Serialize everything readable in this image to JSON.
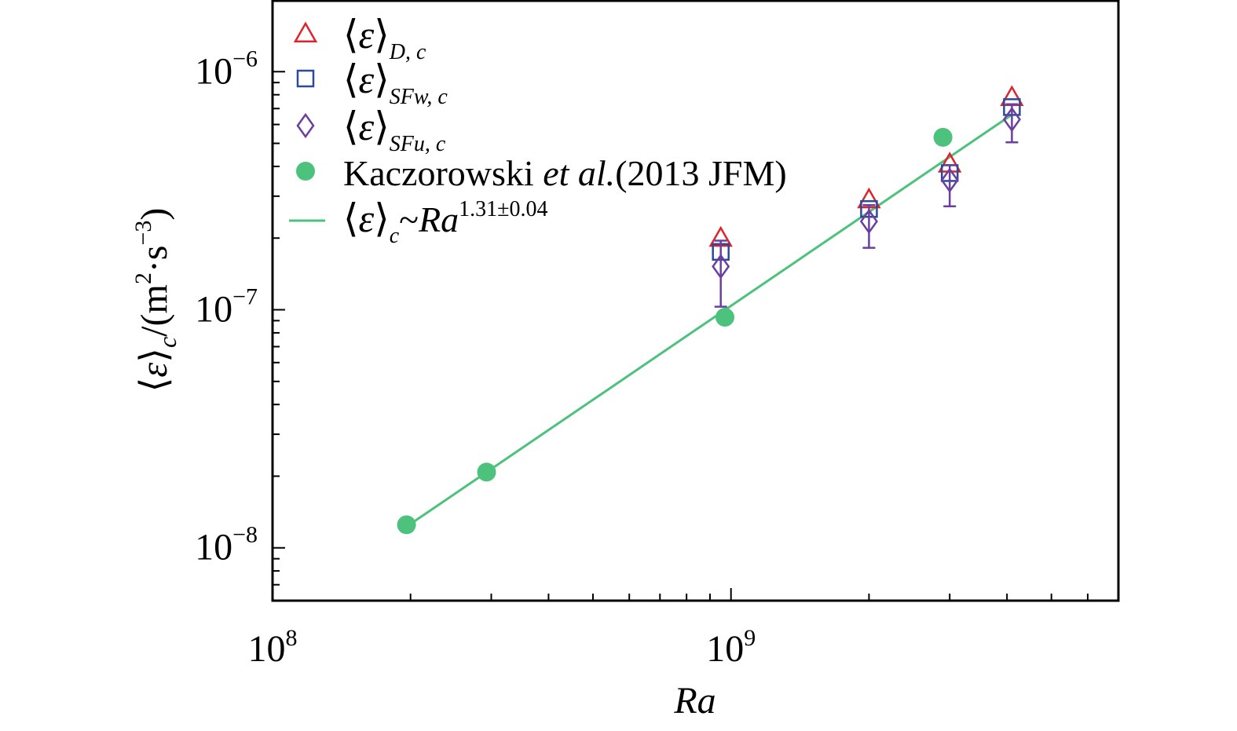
{
  "chart_data": {
    "type": "scatter",
    "xscale": "log",
    "yscale": "log",
    "xlim": [
      100000000,
      7000000000
    ],
    "ylim": [
      6e-09,
      2e-06
    ],
    "x_ticks": [
      {
        "value": 100000000,
        "base": "10",
        "exp": "8"
      },
      {
        "value": 1000000000,
        "base": "10",
        "exp": "9"
      }
    ],
    "y_ticks": [
      {
        "value": 1e-08,
        "base": "10",
        "exp": "−8"
      },
      {
        "value": 1e-07,
        "base": "10",
        "exp": "−7"
      },
      {
        "value": 1e-06,
        "base": "10",
        "exp": "−6"
      }
    ],
    "xlabel": "Ra",
    "ylabel": {
      "open": "⟨",
      "symbol": "ε",
      "close": "⟩",
      "sub": "c",
      "unit_open": "/(m",
      "unit_sup1": "2",
      "unit_mid": "·s",
      "unit_sup2": "−3",
      "unit_close": ")"
    },
    "series": [
      {
        "name": "⟨ε⟩D, c",
        "marker": "triangle",
        "color": "#e0232b",
        "x": [
          950000000,
          2000000000,
          3000000000,
          4100000000
        ],
        "y": [
          2e-07,
          2.9e-07,
          4.1e-07,
          7.8e-07
        ]
      },
      {
        "name": "⟨ε⟩SFw, c",
        "marker": "square",
        "color": "#2b4a9b",
        "x": [
          950000000,
          2000000000,
          3000000000,
          4100000000
        ],
        "y": [
          1.75e-07,
          2.65e-07,
          3.75e-07,
          7.1e-07
        ]
      },
      {
        "name": "⟨ε⟩SFu, c",
        "marker": "diamond",
        "color": "#6a3fa0",
        "x": [
          950000000,
          2000000000,
          3000000000,
          4100000000
        ],
        "y": [
          1.52e-07,
          2.35e-07,
          3.5e-07,
          6.3e-07
        ],
        "yerr_low": [
          1.03e-07,
          1.82e-07,
          2.72e-07,
          5.05e-07
        ],
        "yerr_high": [
          1.95e-07,
          2.75e-07,
          4.05e-07,
          7.3e-07
        ]
      },
      {
        "name": "Kaczorowski et al.(2013 JFM)",
        "marker": "circle",
        "color": "#4cc27d",
        "x": [
          196000000,
          293000000,
          970000000,
          2900000000
        ],
        "y": [
          1.25e-08,
          2.08e-08,
          9.3e-08,
          5.3e-07
        ]
      }
    ],
    "fit": {
      "name": "⟨ε⟩c~Ra1.31±0.04",
      "color": "#4cc27d",
      "x": [
        200000000,
        4100000000
      ],
      "y": [
        1.26e-08,
        6.6e-07
      ]
    },
    "legend": {
      "placement": "top-left",
      "entries": [
        {
          "marker": "triangle",
          "color": "#e0232b",
          "open": "⟨",
          "sym": "ε",
          "close": "⟩",
          "sub": "D, c"
        },
        {
          "marker": "square",
          "color": "#2b4a9b",
          "open": "⟨",
          "sym": "ε",
          "close": "⟩",
          "sub": "SFw, c"
        },
        {
          "marker": "diamond",
          "color": "#6a3fa0",
          "open": "⟨",
          "sym": "ε",
          "close": "⟩",
          "sub": "SFu, c"
        },
        {
          "marker": "circle",
          "color": "#4cc27d",
          "text_main": "Kaczorowski ",
          "text_italic": "et al.",
          "text_tail": "(2013 JFM)"
        },
        {
          "marker": "line",
          "color": "#4cc27d",
          "open": "⟨",
          "sym": "ε",
          "close": "⟩",
          "sub": "c",
          "tilde": "~",
          "ra": "Ra",
          "exponent": "1.31±0.04"
        }
      ]
    },
    "grid": false
  }
}
